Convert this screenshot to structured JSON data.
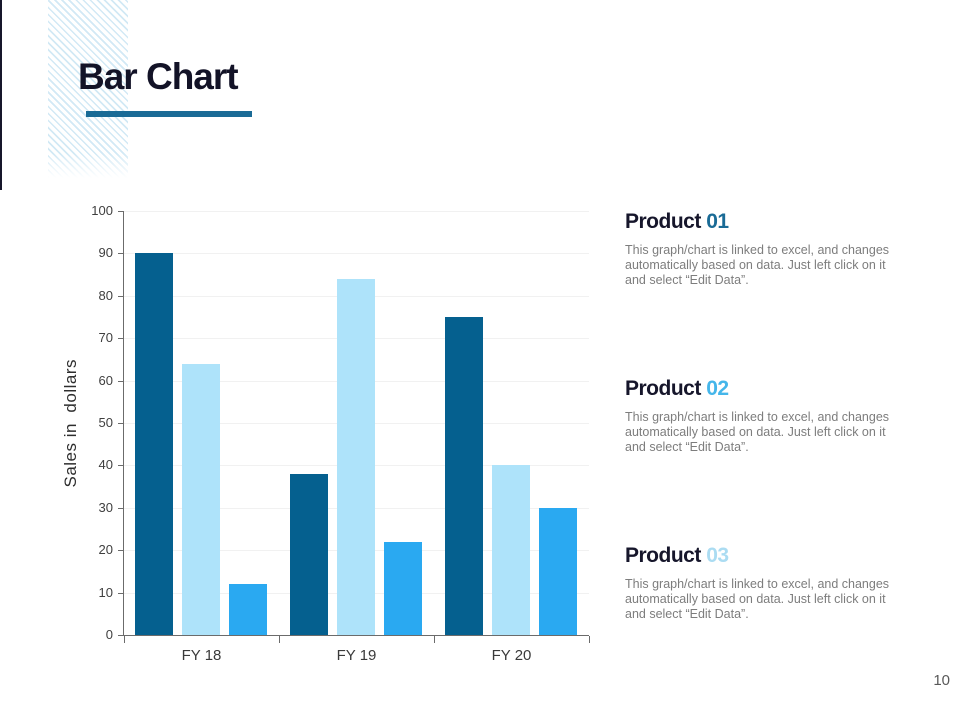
{
  "slide": {
    "title": "Bar Chart",
    "page_number": "10"
  },
  "colors": {
    "title_underline": "#1a6b96",
    "title_text": "#131327",
    "axis_line": "#6b6b6b",
    "gridline": "#f1f1f1",
    "body_text": "#7d7d7d"
  },
  "chart_data": {
    "type": "bar",
    "categories": [
      "FY 18",
      "FY 19",
      "FY 20"
    ],
    "series": [
      {
        "name": "series-dark-blue",
        "color": "#05608f",
        "values": [
          90,
          38,
          75
        ]
      },
      {
        "name": "series-light-blue",
        "color": "#aee3fa",
        "values": [
          64,
          84,
          40
        ]
      },
      {
        "name": "series-medium-blue",
        "color": "#2aa9f1",
        "values": [
          12,
          22,
          30
        ]
      }
    ],
    "title": "",
    "xlabel": "",
    "ylabel": "Sales in  dollars",
    "ylim": [
      0,
      100
    ],
    "ytick_step": 10,
    "grid": true,
    "legend": "none"
  },
  "products": [
    {
      "label": "Product",
      "number": "01",
      "number_color": "#1a6b96",
      "description": "This graph/chart is linked to excel, and changes automatically based on data. Just left click on it and select “Edit Data”."
    },
    {
      "label": "Product",
      "number": "02",
      "number_color": "#45b6ea",
      "description": "This graph/chart is linked to excel, and changes automatically based on data. Just left click on it and select “Edit Data”."
    },
    {
      "label": "Product",
      "number": "03",
      "number_color": "#abdcf2",
      "description": "This graph/chart is linked to excel, and changes automatically based on data. Just left click on it and select “Edit Data”."
    }
  ]
}
